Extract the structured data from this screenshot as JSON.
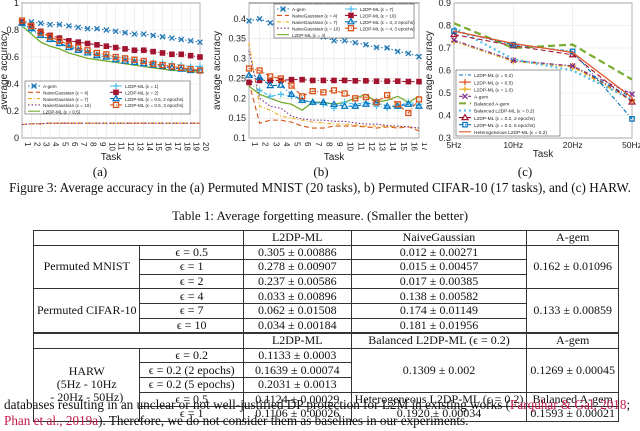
{
  "figure": {
    "caption": "Figure 3: Average accuracy in the (a) Permuted MNIST (20 tasks), b) Permuted CIFAR-10 (17 tasks), and (c) HARW.",
    "sublabels": [
      "(a)",
      "(b)",
      "(c)"
    ]
  },
  "chart_data": [
    {
      "type": "line",
      "title": "(a) Permuted MNIST",
      "xlabel": "Task",
      "ylabel": "average accuracy",
      "ylim": [
        0,
        1
      ],
      "yticks": [
        "0",
        "0.2",
        "0.4",
        "0.6",
        "0.8",
        "1"
      ],
      "x": [
        1,
        2,
        3,
        4,
        5,
        6,
        7,
        8,
        9,
        10,
        11,
        12,
        13,
        14,
        15,
        16,
        17,
        18,
        19,
        20
      ],
      "grid": true,
      "legend_position": "center-left",
      "series": [
        {
          "name": "A-gem",
          "color": "#1f77b4",
          "style": "dotted-x",
          "values": [
            0.86,
            0.86,
            0.85,
            0.84,
            0.84,
            0.83,
            0.82,
            0.81,
            0.81,
            0.8,
            0.79,
            0.78,
            0.77,
            0.77,
            0.76,
            0.75,
            0.74,
            0.73,
            0.72,
            0.71
          ]
        },
        {
          "name": "NaiveGaussian (ε = 4)",
          "color": "#d95319",
          "style": "dashed",
          "values": [
            0.1,
            0.105,
            0.105,
            0.11,
            0.11,
            0.11,
            0.11,
            0.11,
            0.11,
            0.11,
            0.11,
            0.11,
            0.11,
            0.11,
            0.11,
            0.11,
            0.11,
            0.11,
            0.11,
            0.11
          ]
        },
        {
          "name": "NaiveGaussian (ε = 7)",
          "color": "#edb120",
          "style": "dashdot",
          "values": [
            0.1,
            0.105,
            0.105,
            0.11,
            0.11,
            0.11,
            0.11,
            0.11,
            0.11,
            0.11,
            0.11,
            0.11,
            0.11,
            0.11,
            0.11,
            0.11,
            0.11,
            0.11,
            0.11,
            0.11
          ]
        },
        {
          "name": "NaiveGaussian (ε = 10)",
          "color": "#7e2f8e",
          "style": "dotted",
          "values": [
            0.1,
            0.105,
            0.105,
            0.11,
            0.11,
            0.11,
            0.11,
            0.11,
            0.11,
            0.11,
            0.11,
            0.11,
            0.11,
            0.11,
            0.11,
            0.11,
            0.11,
            0.11,
            0.11,
            0.11
          ]
        },
        {
          "name": "L2DP-ML (ε = 0.5)",
          "color": "#77ac30",
          "style": "solid",
          "values": [
            0.83,
            0.77,
            0.71,
            0.68,
            0.66,
            0.63,
            0.61,
            0.59,
            0.58,
            0.57,
            0.56,
            0.55,
            0.54,
            0.53,
            0.52,
            0.51,
            0.5,
            0.5,
            0.49,
            0.49
          ]
        },
        {
          "name": "L2DP-ML (ε = 1)",
          "color": "#4dbeee",
          "style": "dashdot-plus",
          "values": [
            0.84,
            0.8,
            0.76,
            0.73,
            0.7,
            0.68,
            0.66,
            0.64,
            0.62,
            0.61,
            0.6,
            0.59,
            0.58,
            0.57,
            0.56,
            0.56,
            0.55,
            0.54,
            0.53,
            0.53
          ]
        },
        {
          "name": "L2DP-ML (ε = 2)",
          "color": "#a2142f",
          "style": "dashdot-square",
          "values": [
            0.86,
            0.83,
            0.79,
            0.76,
            0.74,
            0.72,
            0.71,
            0.7,
            0.69,
            0.68,
            0.67,
            0.66,
            0.65,
            0.65,
            0.64,
            0.63,
            0.62,
            0.62,
            0.61,
            0.6
          ]
        },
        {
          "name": "L2DP-ML (ε = 0.5, 2 epochs)",
          "color": "#0072bd",
          "style": "dashdot-triangle",
          "values": [
            0.85,
            0.81,
            0.76,
            0.73,
            0.7,
            0.67,
            0.65,
            0.63,
            0.61,
            0.6,
            0.58,
            0.57,
            0.56,
            0.55,
            0.54,
            0.53,
            0.52,
            0.51,
            0.5,
            0.5
          ]
        },
        {
          "name": "L2DP-ML (ε = 0.5, 3 epochs)",
          "color": "#d95319",
          "style": "dashdot-circle",
          "values": [
            0.87,
            0.83,
            0.78,
            0.75,
            0.72,
            0.69,
            0.67,
            0.65,
            0.63,
            0.62,
            0.6,
            0.59,
            0.58,
            0.57,
            0.55,
            0.54,
            0.53,
            0.52,
            0.51,
            0.5
          ]
        }
      ]
    },
    {
      "type": "line",
      "title": "(b) Permuted CIFAR-10",
      "xlabel": "Task",
      "ylabel": "average accuracy",
      "ylim": [
        0.1,
        0.44
      ],
      "yticks": [
        "0.1",
        "0.15",
        "0.2",
        "0.25",
        "0.3",
        "0.35",
        "0.4"
      ],
      "x": [
        1,
        2,
        3,
        4,
        5,
        6,
        7,
        8,
        9,
        10,
        11,
        12,
        13,
        14,
        15,
        16,
        17
      ],
      "grid": true,
      "legend_position": "upper-right",
      "series": [
        {
          "name": "A-gem",
          "color": "#1f77b4",
          "style": "dotted-x",
          "values": [
            0.395,
            0.4,
            0.39,
            0.38,
            0.375,
            0.37,
            0.365,
            0.355,
            0.345,
            0.345,
            0.34,
            0.335,
            0.328,
            0.327,
            0.318,
            0.313,
            0.305
          ]
        },
        {
          "name": "NaiveGaussian (ε = 4)",
          "color": "#d95319",
          "style": "dashed",
          "values": [
            0.24,
            0.137,
            0.145,
            0.145,
            0.14,
            0.13,
            0.125,
            0.125,
            0.13,
            0.13,
            0.13,
            0.128,
            0.125,
            0.128,
            0.125,
            0.128,
            0.118
          ]
        },
        {
          "name": "NaiveGaussian (ε = 7)",
          "color": "#edb120",
          "style": "dashdot",
          "values": [
            0.34,
            0.18,
            0.17,
            0.155,
            0.15,
            0.145,
            0.14,
            0.138,
            0.135,
            0.135,
            0.133,
            0.13,
            0.13,
            0.13,
            0.128,
            0.128,
            0.125
          ]
        },
        {
          "name": "NaiveGaussian (ε = 10)",
          "color": "#7e2f8e",
          "style": "dotted",
          "values": [
            0.32,
            0.2,
            0.18,
            0.175,
            0.155,
            0.148,
            0.145,
            0.145,
            0.142,
            0.142,
            0.138,
            0.135,
            0.135,
            0.132,
            0.13,
            0.128,
            0.125
          ]
        },
        {
          "name": "L2DP-ML (ε = 4)",
          "color": "#77ac30",
          "style": "solid",
          "values": [
            0.23,
            0.21,
            0.2,
            0.19,
            0.185,
            0.17,
            0.19,
            0.19,
            0.185,
            0.19,
            0.2,
            0.21,
            0.19,
            0.195,
            0.205,
            0.19,
            0.205
          ]
        },
        {
          "name": "L2DP-ML (ε = 7)",
          "color": "#4dbeee",
          "style": "dashdot-plus",
          "values": [
            0.24,
            0.22,
            0.205,
            0.21,
            0.205,
            0.195,
            0.19,
            0.185,
            0.175,
            0.19,
            0.185,
            0.19,
            0.18,
            0.175,
            0.18,
            0.19,
            0.185
          ]
        },
        {
          "name": "L2DP-ML (ε = 10)",
          "color": "#a2142f",
          "style": "dashdot-square",
          "values": [
            0.24,
            0.245,
            0.245,
            0.245,
            0.247,
            0.247,
            0.245,
            0.245,
            0.245,
            0.245,
            0.244,
            0.244,
            0.243,
            0.243,
            0.243,
            0.242,
            0.242
          ]
        },
        {
          "name": "L2DP-ML (ε = 4, 2 epochs)",
          "color": "#0072bd",
          "style": "dashdot-triangle",
          "values": [
            0.258,
            0.253,
            0.232,
            0.233,
            0.21,
            0.195,
            0.19,
            0.19,
            0.185,
            0.18,
            0.18,
            0.185,
            0.19,
            0.18,
            0.18,
            0.185,
            0.18
          ]
        },
        {
          "name": "L2DP-ML (ε = 4, 3 epochs)",
          "color": "#d95319",
          "style": "dashdot-circle",
          "values": [
            0.275,
            0.27,
            0.255,
            0.25,
            0.232,
            0.205,
            0.218,
            0.215,
            0.22,
            0.212,
            0.2,
            0.203,
            0.19,
            0.208,
            0.185,
            0.163,
            0.197
          ]
        }
      ]
    },
    {
      "type": "line",
      "title": "(c) HARW",
      "xlabel": "Task",
      "ylabel": "average accuracy",
      "ylim": [
        0.3,
        0.9
      ],
      "yticks": [
        "0.3",
        "0.4",
        "0.5",
        "0.6",
        "0.7",
        "0.8",
        "0.9"
      ],
      "categories": [
        "5Hz",
        "10Hz",
        "20Hz",
        "50Hz"
      ],
      "grid": true,
      "legend_position": "lower-left",
      "series": [
        {
          "name": "L2DP-ML (ε = 0.2)",
          "color": "#0072bd",
          "style": "dashdot",
          "values": [
            0.73,
            0.64,
            0.62,
            0.48
          ]
        },
        {
          "name": "L2DP-ML (ε = 0.5)",
          "color": "#d95319",
          "style": "dashdot-plus",
          "values": [
            0.73,
            0.645,
            0.62,
            0.47
          ]
        },
        {
          "name": "L2DP-ML (ε = 1.0)",
          "color": "#edb120",
          "style": "dashdot-star",
          "values": [
            0.73,
            0.64,
            0.615,
            0.465
          ]
        },
        {
          "name": "A-gem",
          "color": "#7e2f8e",
          "style": "dashdot-x",
          "values": [
            0.735,
            0.645,
            0.62,
            0.495
          ]
        },
        {
          "name": "Balanced A-gem",
          "color": "#77ac30",
          "style": "thick-dashed",
          "values": [
            0.81,
            0.7,
            0.715,
            0.56
          ]
        },
        {
          "name": "Balanced L2DP-ML (ε = 0.2)",
          "color": "#4dbeee",
          "style": "thick-dotted",
          "values": [
            0.79,
            0.65,
            0.6,
            0.47
          ]
        },
        {
          "name": "L2DP-ML (ε = 0.2, 2 epochs)",
          "color": "#a2142f",
          "style": "dashed-triangle",
          "values": [
            0.76,
            0.71,
            0.67,
            0.46
          ]
        },
        {
          "name": "L2DP-ML (ε = 0.2, 5 epochs)",
          "color": "#0072bd",
          "style": "dashdot-square",
          "values": [
            0.775,
            0.715,
            0.685,
            0.385
          ]
        },
        {
          "name": "Heterogeneous L2DP-ML (ε = 0.2)",
          "color": "#e3562a",
          "style": "solid",
          "values": [
            0.775,
            0.72,
            0.68,
            0.48
          ]
        }
      ]
    }
  ],
  "table": {
    "caption": "Table 1: Average forgetting measure. (Smaller the better)",
    "header": [
      "",
      "L2DP-ML",
      "NaiveGaussian",
      "A-gem"
    ],
    "mnist": {
      "dataset": "Permuted MNIST",
      "rows": [
        {
          "eps": "ϵ = 0.5",
          "l2dp": "0.305 ± 0.00886",
          "naive": "0.012 ± 0.00271"
        },
        {
          "eps": "ϵ = 1",
          "l2dp": "0.278 ± 0.00907",
          "naive": "0.015 ± 0.00457"
        },
        {
          "eps": "ϵ = 2",
          "l2dp": "0.237 ± 0.00586",
          "naive": "0.017 ± 0.00385"
        }
      ],
      "agem": "0.162 ± 0.01096"
    },
    "cifar": {
      "dataset": "Permuted CIFAR-10",
      "rows": [
        {
          "eps": "ϵ = 4",
          "l2dp": "0.033 ± 0.00896",
          "naive": "0.138 ± 0.00582"
        },
        {
          "eps": "ϵ = 7",
          "l2dp": "0.062 ± 0.01508",
          "naive": "0.174 ± 0.01149"
        },
        {
          "eps": "ϵ = 10",
          "l2dp": "0.034 ± 0.00184",
          "naive": "0.181 ± 0.01956"
        }
      ],
      "agem": "0.133 ± 0.00859"
    },
    "harw_header": [
      "",
      "L2DP-ML",
      "Balanced L2DP-ML (ϵ = 0.2)",
      "A-gem"
    ],
    "harw": {
      "dataset_lines": [
        "HARW",
        "(5Hz - 10Hz",
        "- 20Hz - 50Hz)"
      ],
      "rows": [
        {
          "eps": "ϵ = 0.2",
          "l2dp": "0.1133 ± 0.0003"
        },
        {
          "eps": "ϵ = 0.2 (2 epochs)",
          "l2dp": "0.1639 ± 0.00074"
        },
        {
          "eps": "ϵ = 0.2 (5 epochs)",
          "l2dp": "0.2031 ± 0.0013"
        },
        {
          "eps": "ϵ = 0.5",
          "l2dp": "0.1124 ± 0.00029"
        },
        {
          "eps": "ϵ = 1",
          "l2dp": "0.1106 ± 0.00026"
        }
      ],
      "balanced_l2dp": "0.1309 ± 0.002",
      "agem": "0.1269 ± 0.00045",
      "hetero_header": "Heterogeneous L2DP-ML (ϵ = 0.2)",
      "hetero_value": "0.1920 ± 0.00034",
      "balanced_agem_header": "Balanced A-gem",
      "balanced_agem_value": "0.1593 ± 0.00021"
    }
  },
  "paragraph": {
    "text1": "databases resulting in an unclear or not well-justified DP protection for L2M in existing works (",
    "cite1": "Farquhar & Gal, 2018",
    "sep": ";",
    "cite2": "Phan et al., 2019a",
    "text2": "). Therefore, we do not consider them as baselines in our experiments."
  }
}
